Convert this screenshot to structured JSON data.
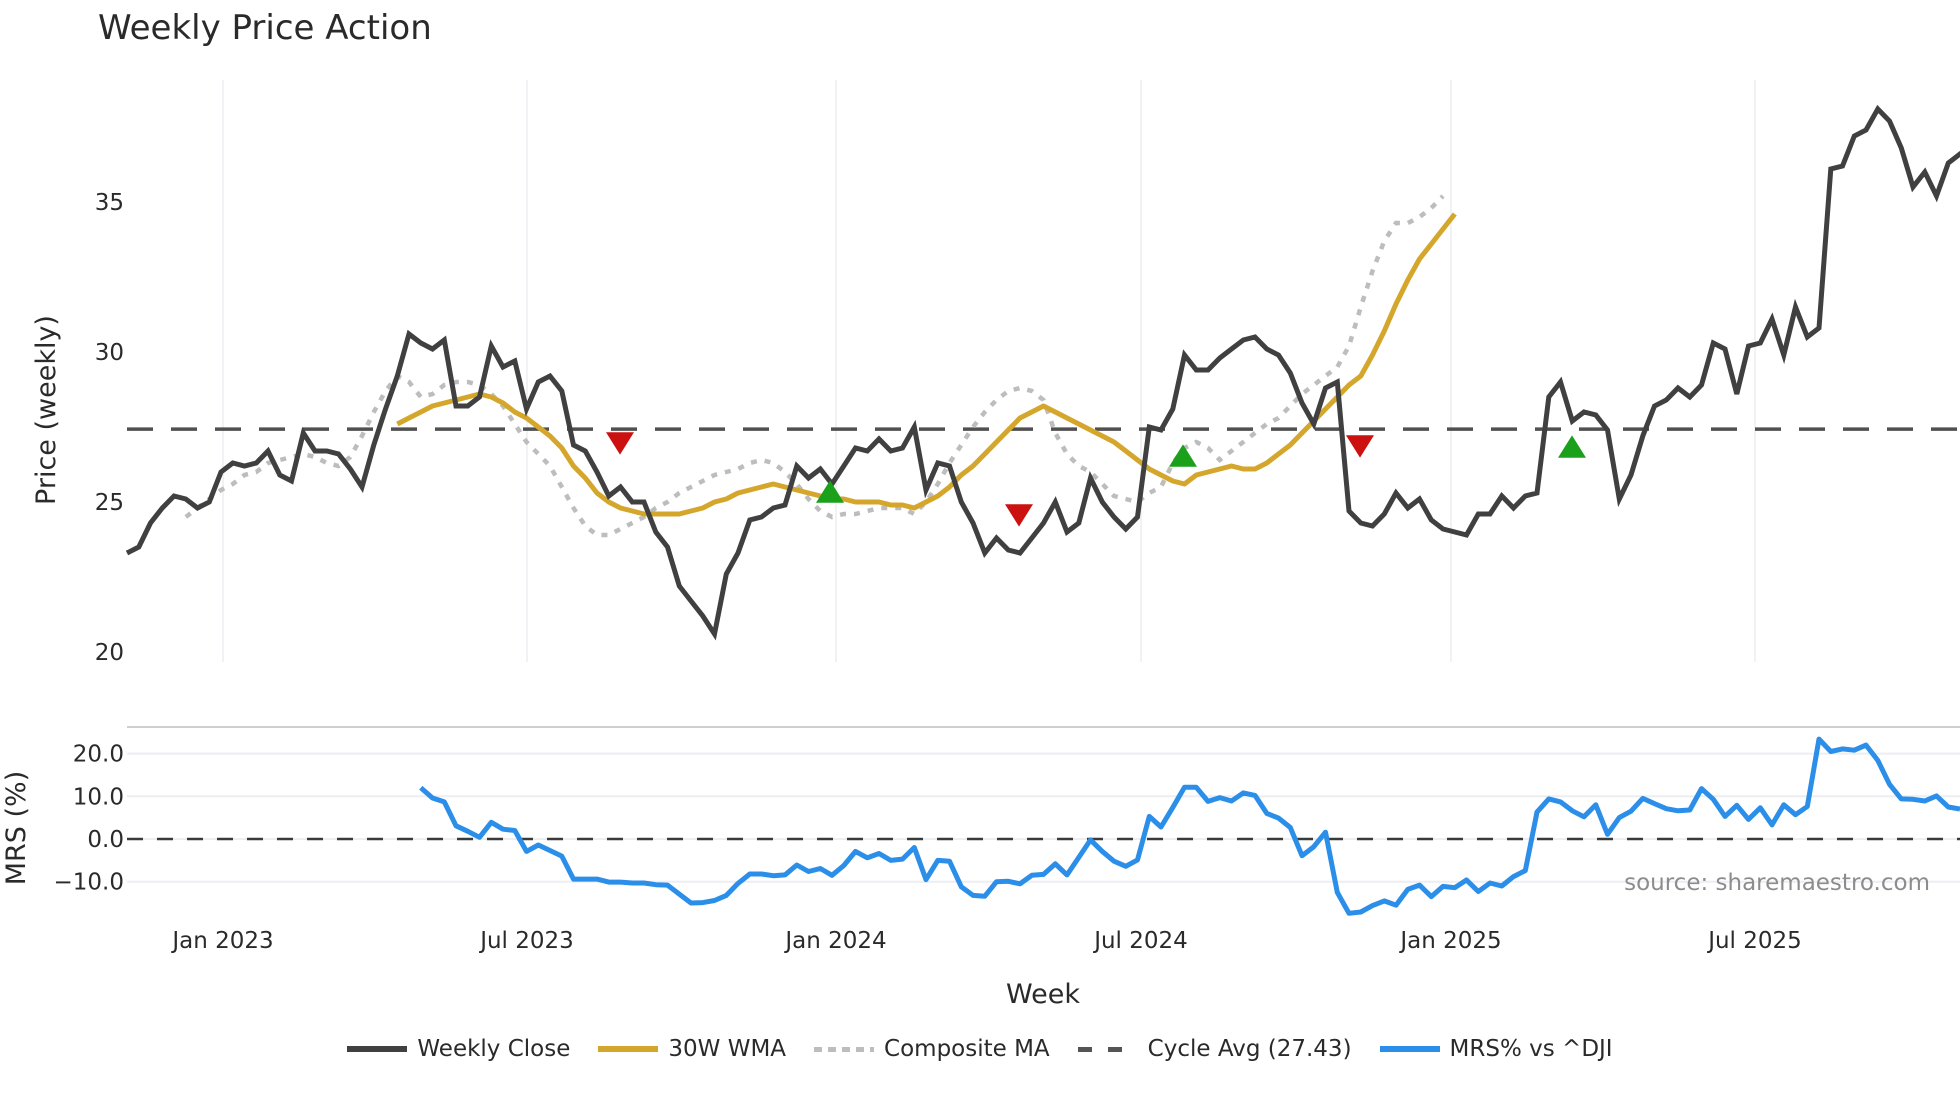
{
  "title": "Weekly Price Action",
  "source_note": "source: sharemaestro.com",
  "legend": [
    {
      "label": "Weekly Close",
      "style": "solid-dark"
    },
    {
      "label": "30W WMA",
      "style": "solid-gold"
    },
    {
      "label": "Composite MA",
      "style": "dotted"
    },
    {
      "label": "Cycle Avg (27.43)",
      "style": "dashed"
    },
    {
      "label": "MRS% vs ^DJI",
      "style": "blue"
    }
  ],
  "colors": {
    "weekly_close": "#404040",
    "wma30": "#d4a72c",
    "composite_ma": "#bdbdbd",
    "cycle_avg": "#505050",
    "mrs": "#2b8ee8",
    "buy_marker": "#1aa01a",
    "sell_marker": "#cc1111",
    "grid": "#eceef2"
  },
  "chart_data": [
    {
      "type": "line",
      "title": "Weekly Price Action",
      "xlabel": "Week",
      "ylabel": "Price (weekly)",
      "ylim": [
        19.5,
        38.5
      ],
      "yticks": [
        20,
        25,
        30,
        35
      ],
      "xticks": [
        "Jan 2023",
        "Jul 2023",
        "Jan 2024",
        "Jul 2024",
        "Jan 2025",
        "Jul 2025"
      ],
      "grid": true,
      "x_start_week": "Nov 2022",
      "series": [
        {
          "name": "Weekly Close",
          "start_index": 0,
          "values": [
            23.3,
            23.5,
            24.3,
            24.8,
            25.2,
            25.1,
            24.8,
            25.0,
            26.0,
            26.3,
            26.2,
            26.3,
            26.7,
            25.9,
            25.7,
            27.3,
            26.7,
            26.7,
            26.6,
            26.1,
            25.5,
            26.9,
            28.1,
            29.2,
            30.6,
            30.3,
            30.1,
            30.4,
            28.2,
            28.2,
            28.5,
            30.2,
            29.5,
            29.7,
            28.1,
            29.0,
            29.2,
            28.7,
            26.9,
            26.7,
            26.0,
            25.2,
            25.5,
            25.0,
            25.0,
            24.0,
            23.5,
            22.2,
            21.7,
            21.2,
            20.6,
            22.6,
            23.3,
            24.4,
            24.5,
            24.8,
            24.9,
            26.2,
            25.8,
            26.1,
            25.6,
            26.2,
            26.8,
            26.7,
            27.1,
            26.7,
            26.8,
            27.5,
            25.4,
            26.3,
            26.2,
            25.0,
            24.3,
            23.3,
            23.8,
            23.4,
            23.3,
            23.8,
            24.3,
            25.0,
            24.0,
            24.3,
            25.8,
            25.0,
            24.5,
            24.1,
            24.5,
            27.5,
            27.4,
            28.1,
            29.9,
            29.4,
            29.4,
            29.8,
            30.1,
            30.4,
            30.5,
            30.1,
            29.9,
            29.3,
            28.3,
            27.6,
            28.8,
            29.0,
            24.7,
            24.3,
            24.2,
            24.6,
            25.3,
            24.8,
            25.1,
            24.4,
            24.1,
            24.0,
            23.9,
            24.6,
            24.6,
            25.2,
            24.8,
            25.2,
            25.3,
            28.5,
            29.0,
            27.7,
            28.0,
            27.9,
            27.4,
            25.1,
            25.9,
            27.2,
            28.2,
            28.4,
            28.8,
            28.5,
            28.9,
            30.3,
            30.1,
            28.6,
            30.2,
            30.3,
            31.1,
            29.9,
            31.5,
            30.5,
            30.8,
            36.1,
            36.2,
            37.2,
            37.4,
            38.1,
            37.7,
            36.8,
            35.5,
            36.0,
            35.2,
            36.3,
            36.6,
            36.9
          ]
        },
        {
          "name": "30W WMA",
          "start_index": 23,
          "values": [
            27.6,
            27.8,
            28.0,
            28.2,
            28.3,
            28.4,
            28.5,
            28.6,
            28.5,
            28.3,
            28.0,
            27.8,
            27.5,
            27.2,
            26.8,
            26.2,
            25.8,
            25.3,
            25.0,
            24.8,
            24.7,
            24.6,
            24.6,
            24.6,
            24.6,
            24.7,
            24.8,
            25.0,
            25.1,
            25.3,
            25.4,
            25.5,
            25.6,
            25.5,
            25.4,
            25.3,
            25.2,
            25.1,
            25.1,
            25.0,
            25.0,
            25.0,
            24.9,
            24.9,
            24.8,
            25.0,
            25.2,
            25.5,
            25.9,
            26.2,
            26.6,
            27.0,
            27.4,
            27.8,
            28.0,
            28.2,
            28.0,
            27.8,
            27.6,
            27.4,
            27.2,
            27.0,
            26.7,
            26.4,
            26.1,
            25.9,
            25.7,
            25.6,
            25.9,
            26.0,
            26.1,
            26.2,
            26.1,
            26.1,
            26.3,
            26.6,
            26.9,
            27.3,
            27.7,
            28.1,
            28.5,
            28.9,
            29.2,
            29.9,
            30.7,
            31.6,
            32.4,
            33.1,
            33.6,
            34.1,
            34.6
          ]
        },
        {
          "name": "Composite MA",
          "start_index": 5,
          "values": [
            24.5,
            24.8,
            25.1,
            25.4,
            25.6,
            25.9,
            26.0,
            26.3,
            26.4,
            26.5,
            26.6,
            26.5,
            26.3,
            26.2,
            26.5,
            27.2,
            28.0,
            28.7,
            29.2,
            29.0,
            28.5,
            28.6,
            28.9,
            29.0,
            29.0,
            28.9,
            28.6,
            28.2,
            27.6,
            27.0,
            26.6,
            26.2,
            25.5,
            24.8,
            24.2,
            23.9,
            23.9,
            24.1,
            24.3,
            24.5,
            24.8,
            25.0,
            25.3,
            25.5,
            25.7,
            25.9,
            26.0,
            26.1,
            26.3,
            26.4,
            26.3,
            26.0,
            25.6,
            25.1,
            24.7,
            24.5,
            24.6,
            24.6,
            24.7,
            24.8,
            24.8,
            24.8,
            24.6,
            25.0,
            25.6,
            26.3,
            26.9,
            27.5,
            28.0,
            28.4,
            28.7,
            28.8,
            28.7,
            28.4,
            27.3,
            26.6,
            26.2,
            26.0,
            25.6,
            25.2,
            25.1,
            25.0,
            25.3,
            25.5,
            26.3,
            26.8,
            27.0,
            26.8,
            26.4,
            26.7,
            27.0,
            27.3,
            27.6,
            27.8,
            28.2,
            28.6,
            28.9,
            29.2,
            29.5,
            30.2,
            31.5,
            32.7,
            33.7,
            34.3,
            34.3,
            34.5,
            34.8,
            35.2
          ]
        },
        {
          "name": "Cycle Avg (27.43)",
          "constant": 27.43
        }
      ],
      "markers": [
        {
          "type": "sell",
          "week_index": 37,
          "price": 27.0
        },
        {
          "type": "buy",
          "week_index": 61,
          "price": 25.3
        },
        {
          "type": "sell",
          "week_index": 86,
          "price": 24.6
        },
        {
          "type": "buy",
          "week_index": 107,
          "price": 26.5
        },
        {
          "type": "sell",
          "week_index": 127,
          "price": 26.9
        },
        {
          "type": "buy",
          "week_index": 157,
          "price": 26.8
        }
      ]
    },
    {
      "type": "line",
      "title": "",
      "xlabel": "Week",
      "ylabel": "MRS (%)",
      "ylim": [
        -15.5,
        26
      ],
      "yticks": [
        20.0,
        10.0,
        0.0,
        -10.0
      ],
      "zero_line": true,
      "series": [
        {
          "name": "MRS% vs ^DJI",
          "start_index": 25,
          "values": [
            12.0,
            9.6,
            8.7,
            3.1,
            1.8,
            0.4,
            3.9,
            2.3,
            2.0,
            -2.9,
            -1.4,
            -2.7,
            -4.0,
            -9.4,
            -9.4,
            -9.4,
            -10.1,
            -10.1,
            -10.3,
            -10.3,
            -10.7,
            -10.8,
            -12.9,
            -15.0,
            -14.9,
            -14.4,
            -13.2,
            -10.4,
            -8.2,
            -8.2,
            -8.6,
            -8.4,
            -6.1,
            -7.6,
            -6.9,
            -8.5,
            -6.2,
            -2.9,
            -4.4,
            -3.4,
            -5.0,
            -4.7,
            -2.0,
            -9.5,
            -5.0,
            -5.2,
            -11.2,
            -13.2,
            -13.4,
            -10.0,
            -9.9,
            -10.5,
            -8.5,
            -8.3,
            -5.8,
            -8.4,
            -4.3,
            -0.2,
            -2.9,
            -5.2,
            -6.4,
            -4.9,
            5.3,
            2.8,
            7.4,
            12.1,
            12.1,
            8.8,
            9.7,
            8.9,
            10.8,
            10.2,
            6.0,
            4.9,
            2.7,
            -3.9,
            -1.8,
            1.6,
            -12.5,
            -17.4,
            -17.1,
            -15.6,
            -14.5,
            -15.5,
            -11.8,
            -10.8,
            -13.5,
            -11.1,
            -11.4,
            -9.6,
            -12.3,
            -10.3,
            -11.0,
            -8.8,
            -7.4,
            6.3,
            9.4,
            8.7,
            6.6,
            5.2,
            8.0,
            1.1,
            5.0,
            6.5,
            9.5,
            8.3,
            7.1,
            6.6,
            6.8,
            11.8,
            9.3,
            5.3,
            7.9,
            4.6,
            7.3,
            3.3,
            8.0,
            5.7,
            7.6,
            23.4,
            20.5,
            21.1,
            20.8,
            22.0,
            18.4,
            12.8,
            9.4,
            9.3,
            8.9,
            10.1,
            7.5,
            7.0
          ]
        }
      ]
    }
  ],
  "axes": {
    "price": {
      "label": "Price (weekly)",
      "ticks": [
        "20",
        "25",
        "30",
        "35"
      ]
    },
    "mrs": {
      "label": "MRS (%)",
      "ticks": [
        "20.0",
        "10.0",
        "0.0",
        "−10.0"
      ]
    },
    "x": {
      "label": "Week",
      "ticks": [
        "Jan 2023",
        "Jul 2023",
        "Jan 2024",
        "Jul 2024",
        "Jan 2025",
        "Jul 2025"
      ]
    }
  }
}
